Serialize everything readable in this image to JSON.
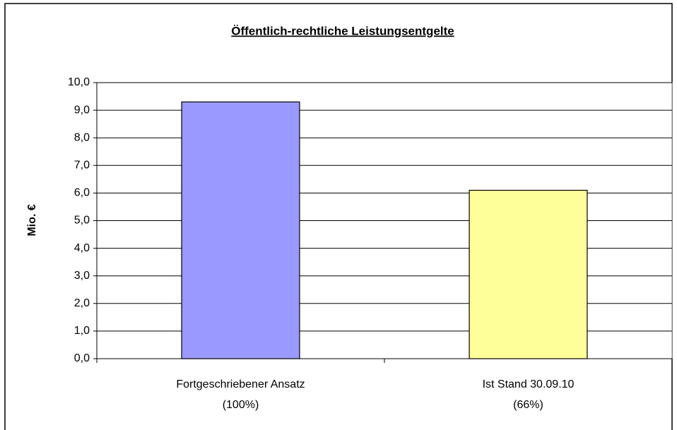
{
  "chart_data": {
    "type": "bar",
    "title": "Öffentlich-rechtliche Leistungsentgelte",
    "y_label": "Mio. €",
    "categories": [
      [
        "Fortgeschriebener Ansatz",
        "(100%)"
      ],
      [
        "Ist Stand 30.09.10",
        "(66%)"
      ]
    ],
    "values": [
      9.3,
      6.1
    ],
    "colors": [
      "#9999ff",
      "#ffff99"
    ],
    "ylim": [
      0,
      10
    ],
    "yticks": [
      {
        "value": 0,
        "label": "0,0"
      },
      {
        "value": 1,
        "label": "1,0"
      },
      {
        "value": 2,
        "label": "2,0"
      },
      {
        "value": 3,
        "label": "3,0"
      },
      {
        "value": 4,
        "label": "4,0"
      },
      {
        "value": 5,
        "label": "5,0"
      },
      {
        "value": 6,
        "label": "6,0"
      },
      {
        "value": 7,
        "label": "7,0"
      },
      {
        "value": 8,
        "label": "8,0"
      },
      {
        "value": 9,
        "label": "9,0"
      },
      {
        "value": 10,
        "label": "10,0"
      }
    ],
    "grid": true
  }
}
